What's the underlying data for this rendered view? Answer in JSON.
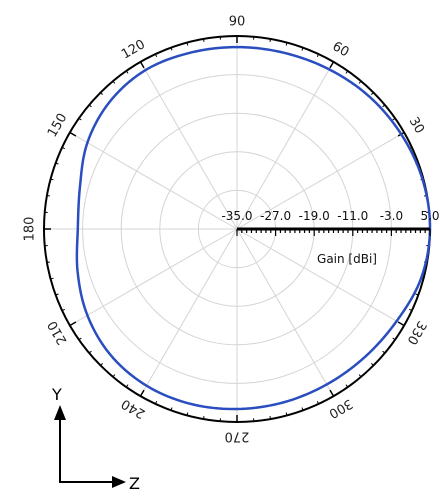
{
  "chart_data": {
    "type": "polar-line",
    "title": "",
    "radial_axis": {
      "label": "Gain [dBi]",
      "ticks": [
        -35.0,
        -27.0,
        -19.0,
        -11.0,
        -3.0,
        5.0
      ],
      "tick_labels": [
        "-35.0",
        "-27.0",
        "-19.0",
        "-11.0",
        "-3.0",
        "5.0"
      ],
      "range": [
        -35,
        5
      ]
    },
    "angular_axis": {
      "ticks_deg": [
        0,
        30,
        60,
        90,
        120,
        150,
        180,
        210,
        240,
        270,
        300,
        330
      ],
      "tick_labels": [
        "0",
        "30",
        "60",
        "90",
        "120",
        "150",
        "180",
        "210",
        "240",
        "270",
        "300",
        "330"
      ],
      "direction": "counterclockwise",
      "zero_at": "right"
    },
    "grid": true,
    "series": [
      {
        "color": "#2a4dbf",
        "angles_deg": [
          0,
          15,
          30,
          45,
          60,
          75,
          90,
          105,
          120,
          135,
          150,
          165,
          180,
          195,
          210,
          225,
          240,
          255,
          270,
          285,
          300,
          315,
          330,
          345
        ],
        "gain_dbi": [
          5.0,
          4.8,
          4.3,
          3.8,
          3.2,
          2.8,
          2.7,
          2.8,
          3.0,
          2.3,
          0.8,
          -1.3,
          -2.0,
          -0.8,
          0.8,
          2.0,
          2.5,
          2.5,
          2.3,
          2.2,
          2.2,
          2.5,
          3.2,
          4.5
        ]
      }
    ],
    "axis_indicator": {
      "vertical": "Y",
      "horizontal": "Z"
    }
  }
}
